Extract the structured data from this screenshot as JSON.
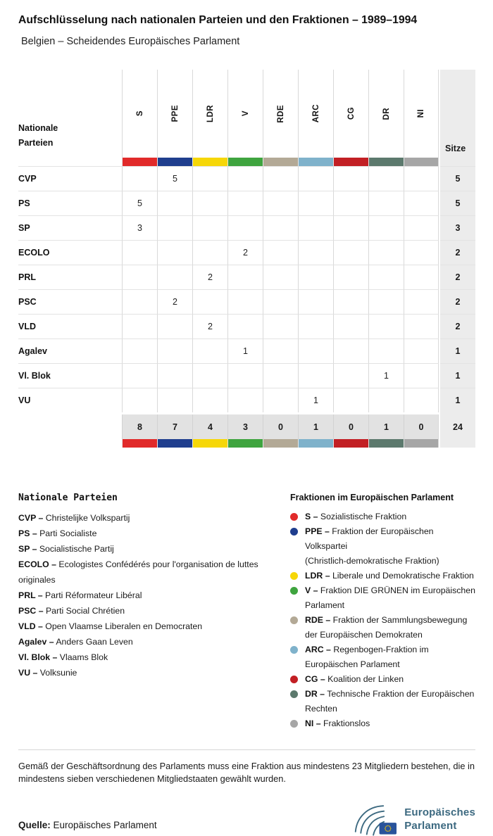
{
  "header": {
    "title": "Aufschlüsselung nach nationalen Parteien und den Fraktionen – 1989–1994",
    "subtitle": "Belgien – Scheidendes Europäisches Parlament"
  },
  "chart_data": {
    "type": "table",
    "title": "Aufschlüsselung nach nationalen Parteien und den Fraktionen – 1989–1994",
    "row_header_label": "Nationale Parteien",
    "seats_label": "Sitze",
    "groups": [
      {
        "code": "S",
        "color": "#e12a2a"
      },
      {
        "code": "PPE",
        "color": "#1f3e8e"
      },
      {
        "code": "LDR",
        "color": "#f6d708"
      },
      {
        "code": "V",
        "color": "#3fa43f"
      },
      {
        "code": "RDE",
        "color": "#b3a996"
      },
      {
        "code": "ARC",
        "color": "#7fb2cb"
      },
      {
        "code": "CG",
        "color": "#c21f24"
      },
      {
        "code": "DR",
        "color": "#5c796d"
      },
      {
        "code": "NI",
        "color": "#a6a6a6"
      }
    ],
    "rows": [
      {
        "party": "CVP",
        "values": [
          "",
          "5",
          "",
          "",
          "",
          "",
          "",
          "",
          ""
        ],
        "seats": "5"
      },
      {
        "party": "PS",
        "values": [
          "5",
          "",
          "",
          "",
          "",
          "",
          "",
          "",
          ""
        ],
        "seats": "5"
      },
      {
        "party": "SP",
        "values": [
          "3",
          "",
          "",
          "",
          "",
          "",
          "",
          "",
          ""
        ],
        "seats": "3"
      },
      {
        "party": "ECOLO",
        "values": [
          "",
          "",
          "",
          "2",
          "",
          "",
          "",
          "",
          ""
        ],
        "seats": "2"
      },
      {
        "party": "PRL",
        "values": [
          "",
          "",
          "2",
          "",
          "",
          "",
          "",
          "",
          ""
        ],
        "seats": "2"
      },
      {
        "party": "PSC",
        "values": [
          "",
          "2",
          "",
          "",
          "",
          "",
          "",
          "",
          ""
        ],
        "seats": "2"
      },
      {
        "party": "VLD",
        "values": [
          "",
          "",
          "2",
          "",
          "",
          "",
          "",
          "",
          ""
        ],
        "seats": "2"
      },
      {
        "party": "Agalev",
        "values": [
          "",
          "",
          "",
          "1",
          "",
          "",
          "",
          "",
          ""
        ],
        "seats": "1"
      },
      {
        "party": "Vl. Blok",
        "values": [
          "",
          "",
          "",
          "",
          "",
          "",
          "",
          "1",
          ""
        ],
        "seats": "1"
      },
      {
        "party": "VU",
        "values": [
          "",
          "",
          "",
          "",
          "",
          "1",
          "",
          "",
          ""
        ],
        "seats": "1"
      }
    ],
    "totals": {
      "values": [
        "8",
        "7",
        "4",
        "3",
        "0",
        "1",
        "0",
        "1",
        "0"
      ],
      "seats": "24"
    }
  },
  "legend_parties": {
    "title": "Nationale Parteien",
    "items": [
      {
        "abbr": "CVP",
        "name": "Christelijke Volkspartij"
      },
      {
        "abbr": "PS",
        "name": "Parti Socialiste"
      },
      {
        "abbr": "SP",
        "name": "Socialistische Partij"
      },
      {
        "abbr": "ECOLO",
        "name": "Ecologistes Confédérés pour l'organisation de luttes\noriginales"
      },
      {
        "abbr": "PRL",
        "name": "Parti Réformateur Libéral"
      },
      {
        "abbr": "PSC",
        "name": "Parti Social Chrétien"
      },
      {
        "abbr": "VLD",
        "name": "Open Vlaamse Liberalen en Democraten"
      },
      {
        "abbr": "Agalev",
        "name": "Anders Gaan Leven"
      },
      {
        "abbr": "Vl. Blok",
        "name": "Vlaams Blok"
      },
      {
        "abbr": "VU",
        "name": "Volksunie"
      }
    ]
  },
  "legend_groups": {
    "title": "Fraktionen im Europäischen Parlament",
    "items": [
      {
        "abbr": "S",
        "color": "#e12a2a",
        "name": "Sozialistische Fraktion"
      },
      {
        "abbr": "PPE",
        "color": "#1f3e8e",
        "name": "Fraktion der Europäischen Volkspartei\n(Christlich-demokratische Fraktion)"
      },
      {
        "abbr": "LDR",
        "color": "#f6d708",
        "name": "Liberale und Demokratische Fraktion"
      },
      {
        "abbr": "V",
        "color": "#3fa43f",
        "name": "Fraktion DIE GRÜNEN im Europäischen\nParlament"
      },
      {
        "abbr": "RDE",
        "color": "#b3a996",
        "name": "Fraktion der Sammlungsbewegung\nder Europäischen Demokraten"
      },
      {
        "abbr": "ARC",
        "color": "#7fb2cb",
        "name": "Regenbogen-Fraktion im\nEuropäischen Parlament"
      },
      {
        "abbr": "CG",
        "color": "#c21f24",
        "name": "Koalition der Linken"
      },
      {
        "abbr": "DR",
        "color": "#5c796d",
        "name": "Technische Fraktion der Europäischen\nRechten"
      },
      {
        "abbr": "NI",
        "color": "#a6a6a6",
        "name": "Fraktionslos"
      }
    ]
  },
  "note": "Gemäß der Geschäftsordnung des Parlaments muss eine Fraktion aus mindestens 23 Mitgliedern bestehen, die in\nmindestens sieben verschiedenen Mitgliedstaaten gewählt wurden.",
  "footer": {
    "source_label": "Quelle:",
    "source": "Europäisches Parlament",
    "logo": {
      "line1": "Europäisches",
      "line2": "Parlament"
    }
  }
}
